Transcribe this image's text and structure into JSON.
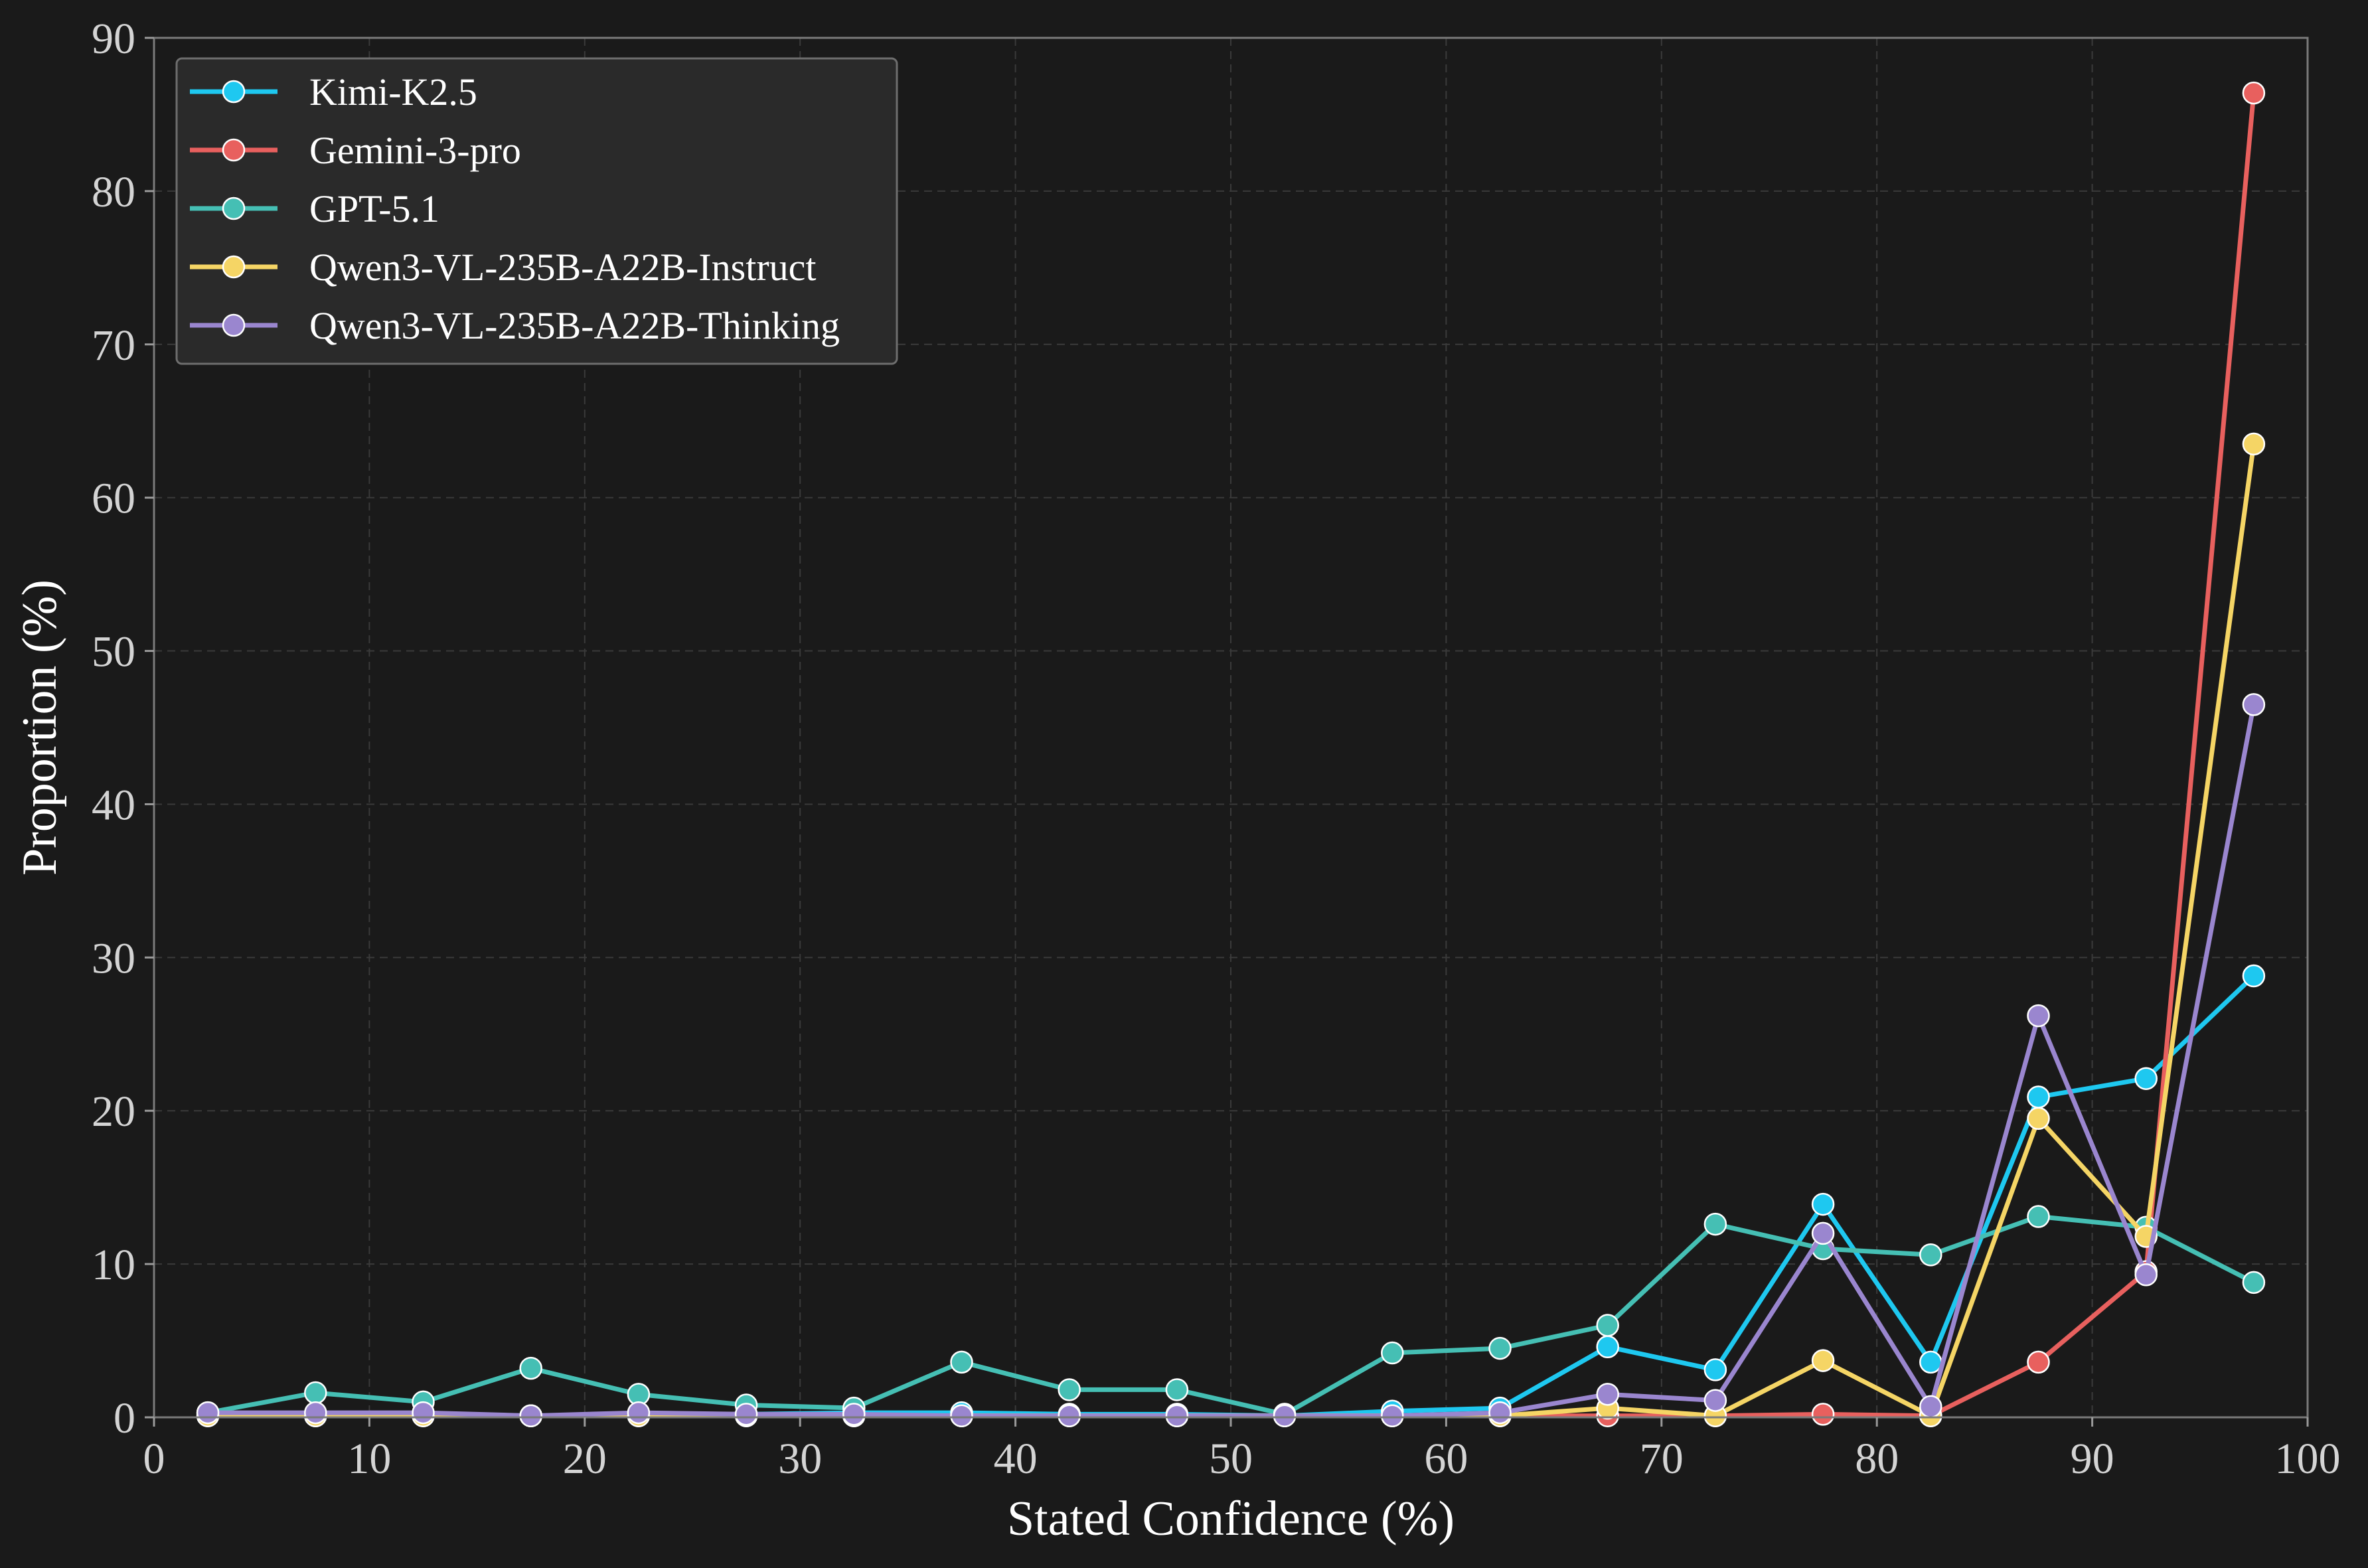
{
  "chart_data": {
    "type": "line",
    "title": "",
    "xlabel": "Stated Confidence (%)",
    "ylabel": "Proportion (%)",
    "xlim": [
      0,
      100
    ],
    "ylim": [
      0,
      90
    ],
    "xticks": [
      0,
      10,
      20,
      30,
      40,
      50,
      60,
      70,
      80,
      90,
      100
    ],
    "yticks": [
      0,
      10,
      20,
      30,
      40,
      50,
      60,
      70,
      80,
      90
    ],
    "grid": true,
    "legend_position": "top-left",
    "x": [
      2.5,
      7.5,
      12.5,
      17.5,
      22.5,
      27.5,
      32.5,
      37.5,
      42.5,
      47.5,
      52.5,
      57.5,
      62.5,
      67.5,
      72.5,
      77.5,
      82.5,
      87.5,
      92.5,
      97.5
    ],
    "series": [
      {
        "name": "Kimi-K2.5",
        "color": "#1ec8f0",
        "values": [
          0.2,
          0.1,
          0.2,
          0.1,
          0.2,
          0.2,
          0.3,
          0.3,
          0.2,
          0.2,
          0.1,
          0.4,
          0.6,
          4.6,
          3.1,
          13.9,
          3.6,
          20.9,
          22.1,
          28.8
        ]
      },
      {
        "name": "Gemini-3-pro",
        "color": "#e8605e",
        "values": [
          0.1,
          0.1,
          0.1,
          0.1,
          0.1,
          0.1,
          0.1,
          0.1,
          0.1,
          0.1,
          0.1,
          0.1,
          0.1,
          0.1,
          0.1,
          0.2,
          0.1,
          3.6,
          9.5,
          86.4
        ]
      },
      {
        "name": "GPT-5.1",
        "color": "#45bfb4",
        "values": [
          0.3,
          1.6,
          1.0,
          3.2,
          1.5,
          0.8,
          0.6,
          3.6,
          1.8,
          1.8,
          0.2,
          4.2,
          4.5,
          6.0,
          12.6,
          11.0,
          10.6,
          13.1,
          12.4,
          8.8
        ]
      },
      {
        "name": "Qwen3-VL-235B-A22B-Instruct",
        "color": "#f5d565",
        "values": [
          0.1,
          0.1,
          0.1,
          0.1,
          0.1,
          0.1,
          0.1,
          0.1,
          0.1,
          0.1,
          0.1,
          0.1,
          0.1,
          0.6,
          0.1,
          3.7,
          0.1,
          19.5,
          11.8,
          63.5
        ]
      },
      {
        "name": "Qwen3-VL-235B-A22B-Thinking",
        "color": "#9a86cf",
        "values": [
          0.3,
          0.3,
          0.3,
          0.1,
          0.3,
          0.2,
          0.2,
          0.1,
          0.1,
          0.1,
          0.1,
          0.1,
          0.3,
          1.5,
          1.1,
          12.0,
          0.7,
          26.2,
          9.3,
          46.5
        ]
      }
    ]
  }
}
